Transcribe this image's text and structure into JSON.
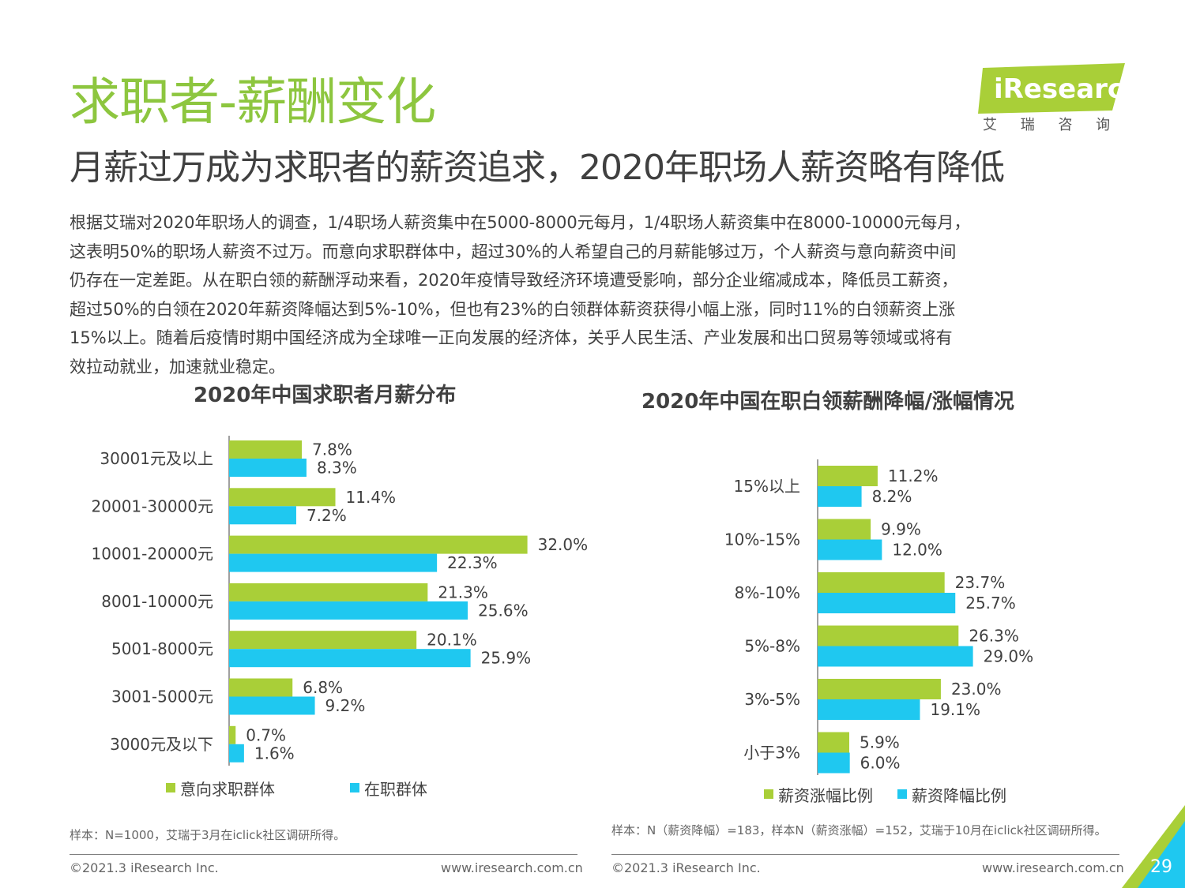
{
  "header": {
    "title": "求职者-薪酬变化",
    "subtitle": "月薪过万成为求职者的薪资追求，2020年职场人薪资略有降低",
    "logo_text": "iResearch",
    "logo_sub": "艾 瑞 咨 询"
  },
  "body": {
    "lines": [
      "根据艾瑞对2020年职场人的调查，1/4职场人薪资集中在5000-8000元每月，1/4职场人薪资集中在8000-10000元每月，",
      "这表明50%的职场人薪资不过万。而意向求职群体中，超过30%的人希望自己的月薪能够过万，个人薪资与意向薪资中间",
      "仍存在一定差距。从在职白领的薪酬浮动来看，2020年疫情导致经济环境遭受影响，部分企业缩减成本，降低员工薪资，",
      "超过50%的白领在2020年薪资降幅达到5%-10%，但也有23%的白领群体薪资获得小幅上涨，同时11%的白领薪资上涨",
      "15%以上。随着后疫情时期中国经济成为全球唯一正向发展的经济体，关乎人民生活、产业发展和出口贸易等领域或将有",
      "效拉动就业，加速就业稳定。"
    ]
  },
  "colors": {
    "green": "#a9cf38",
    "blue": "#1fc8f0",
    "title_green": "#8dc63f"
  },
  "chart_data": [
    {
      "type": "bar",
      "orientation": "horizontal",
      "title": "2020年中国求职者月薪分布",
      "categories": [
        "30001元及以上",
        "20001-30000元",
        "10001-20000元",
        "8001-10000元",
        "5001-8000元",
        "3001-5000元",
        "3000元及以下"
      ],
      "series": [
        {
          "name": "意向求职群体",
          "color": "#a9cf38",
          "values": [
            7.8,
            11.4,
            32.0,
            21.3,
            20.1,
            6.8,
            0.7
          ],
          "labels": [
            "7.8%",
            "11.4%",
            "32.0%",
            "21.3%",
            "20.1%",
            "6.8%",
            "0.7%"
          ]
        },
        {
          "name": "在职群体",
          "color": "#1fc8f0",
          "values": [
            8.3,
            7.2,
            22.3,
            25.6,
            25.9,
            9.2,
            1.6
          ],
          "labels": [
            "8.3%",
            "7.2%",
            "22.3%",
            "25.6%",
            "25.9%",
            "9.2%",
            "1.6%"
          ]
        }
      ],
      "unit": "%",
      "legend": "bottom"
    },
    {
      "type": "bar",
      "orientation": "horizontal",
      "title": "2020年中国在职白领薪酬降幅/涨幅情况",
      "categories": [
        "15%以上",
        "10%-15%",
        "8%-10%",
        "5%-8%",
        "3%-5%",
        "小于3%"
      ],
      "series": [
        {
          "name": "薪资涨幅比例",
          "color": "#a9cf38",
          "values": [
            11.2,
            9.9,
            23.7,
            26.3,
            23.0,
            5.9
          ],
          "labels": [
            "11.2%",
            "9.9%",
            "23.7%",
            "26.3%",
            "23.0%",
            "5.9%"
          ]
        },
        {
          "name": "薪资降幅比例",
          "color": "#1fc8f0",
          "values": [
            8.2,
            12.0,
            25.7,
            29.0,
            19.1,
            6.0
          ],
          "labels": [
            "8.2%",
            "12.0%",
            "25.7%",
            "29.0%",
            "19.1%",
            "6.0%"
          ]
        }
      ],
      "unit": "%",
      "legend": "bottom"
    }
  ],
  "notes": {
    "left": "样本：N=1000，艾瑞于3月在iclick社区调研所得。",
    "right": "样本：N（薪资降幅）=183，样本N（薪资涨幅）=152，艾瑞于10月在iclick社区调研所得。"
  },
  "footer": {
    "copyright": "©2021.3 iResearch Inc.",
    "url": "www.iresearch.com.cn",
    "page": "29"
  }
}
